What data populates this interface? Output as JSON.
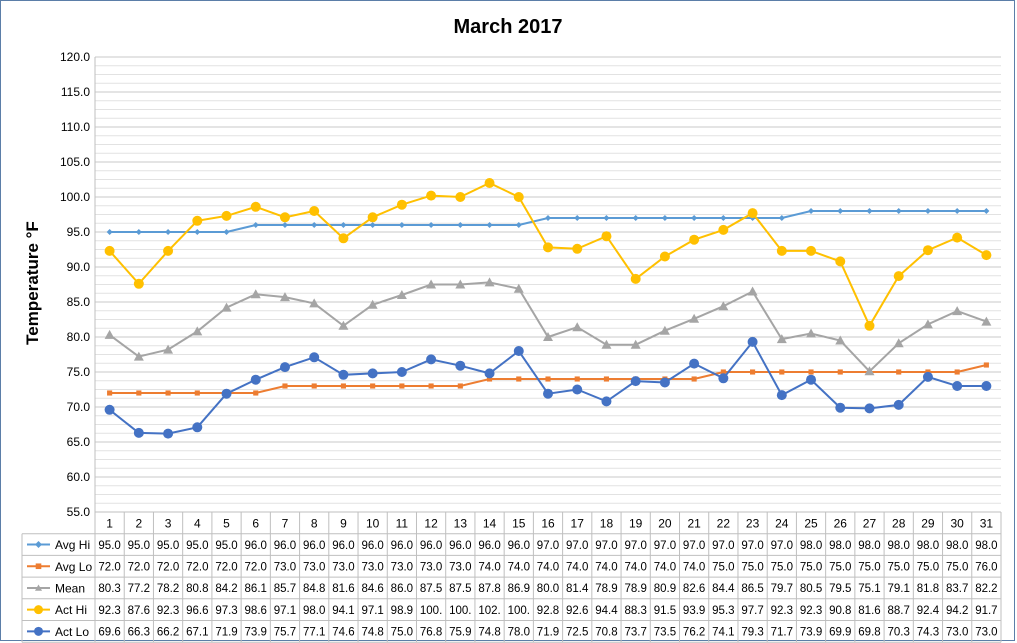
{
  "chart_data": {
    "type": "line",
    "title": "March 2017",
    "ylabel": "Temperature °F",
    "xlabel": "",
    "ylim": [
      55,
      120
    ],
    "y_ticks": [
      "55.0",
      "60.0",
      "65.0",
      "70.0",
      "75.0",
      "80.0",
      "85.0",
      "90.0",
      "95.0",
      "100.0",
      "105.0",
      "110.0",
      "115.0",
      "120.0"
    ],
    "grid": true,
    "legend": "data-table",
    "categories": [
      "1",
      "2",
      "3",
      "4",
      "5",
      "6",
      "7",
      "8",
      "9",
      "10",
      "11",
      "12",
      "13",
      "14",
      "15",
      "16",
      "17",
      "18",
      "19",
      "20",
      "21",
      "22",
      "23",
      "24",
      "25",
      "26",
      "27",
      "28",
      "29",
      "30",
      "31"
    ],
    "series": [
      {
        "name": "Avg Hi",
        "color": "#5b9bd5",
        "marker": "diamond",
        "values": [
          95.0,
          95.0,
          95.0,
          95.0,
          95.0,
          96.0,
          96.0,
          96.0,
          96.0,
          96.0,
          96.0,
          96.0,
          96.0,
          96.0,
          96.0,
          97.0,
          97.0,
          97.0,
          97.0,
          97.0,
          97.0,
          97.0,
          97.0,
          97.0,
          98.0,
          98.0,
          98.0,
          98.0,
          98.0,
          98.0,
          98.0
        ],
        "labels": [
          "95.0",
          "95.0",
          "95.0",
          "95.0",
          "95.0",
          "96.0",
          "96.0",
          "96.0",
          "96.0",
          "96.0",
          "96.0",
          "96.0",
          "96.0",
          "96.0",
          "96.0",
          "97.0",
          "97.0",
          "97.0",
          "97.0",
          "97.0",
          "97.0",
          "97.0",
          "97.0",
          "97.0",
          "98.0",
          "98.0",
          "98.0",
          "98.0",
          "98.0",
          "98.0",
          "98.0"
        ]
      },
      {
        "name": "Avg Lo",
        "color": "#ed7d31",
        "marker": "square",
        "values": [
          72.0,
          72.0,
          72.0,
          72.0,
          72.0,
          72.0,
          73.0,
          73.0,
          73.0,
          73.0,
          73.0,
          73.0,
          73.0,
          74.0,
          74.0,
          74.0,
          74.0,
          74.0,
          74.0,
          74.0,
          74.0,
          75.0,
          75.0,
          75.0,
          75.0,
          75.0,
          75.0,
          75.0,
          75.0,
          75.0,
          76.0
        ],
        "labels": [
          "72.0",
          "72.0",
          "72.0",
          "72.0",
          "72.0",
          "72.0",
          "73.0",
          "73.0",
          "73.0",
          "73.0",
          "73.0",
          "73.0",
          "73.0",
          "74.0",
          "74.0",
          "74.0",
          "74.0",
          "74.0",
          "74.0",
          "74.0",
          "74.0",
          "75.0",
          "75.0",
          "75.0",
          "75.0",
          "75.0",
          "75.0",
          "75.0",
          "75.0",
          "75.0",
          "76.0"
        ]
      },
      {
        "name": "Mean",
        "color": "#a5a5a5",
        "marker": "triangle",
        "values": [
          80.3,
          77.2,
          78.2,
          80.8,
          84.2,
          86.1,
          85.7,
          84.8,
          81.6,
          84.6,
          86.0,
          87.5,
          87.5,
          87.8,
          86.9,
          80.0,
          81.4,
          78.9,
          78.9,
          80.9,
          82.6,
          84.4,
          86.5,
          79.7,
          80.5,
          79.5,
          75.1,
          79.1,
          81.8,
          83.7,
          82.2
        ],
        "labels": [
          "80.3",
          "77.2",
          "78.2",
          "80.8",
          "84.2",
          "86.1",
          "85.7",
          "84.8",
          "81.6",
          "84.6",
          "86.0",
          "87.5",
          "87.5",
          "87.8",
          "86.9",
          "80.0",
          "81.4",
          "78.9",
          "78.9",
          "80.9",
          "82.6",
          "84.4",
          "86.5",
          "79.7",
          "80.5",
          "79.5",
          "75.1",
          "79.1",
          "81.8",
          "83.7",
          "82.2"
        ]
      },
      {
        "name": "Act Hi",
        "color": "#ffc000",
        "marker": "circle",
        "values": [
          92.3,
          87.6,
          92.3,
          96.6,
          97.3,
          98.6,
          97.1,
          98.0,
          94.1,
          97.1,
          98.9,
          100.2,
          100.0,
          102.0,
          100.0,
          92.8,
          92.6,
          94.4,
          88.3,
          91.5,
          93.9,
          95.3,
          97.7,
          92.3,
          92.3,
          90.8,
          81.6,
          88.7,
          92.4,
          94.2,
          91.7
        ],
        "labels": [
          "92.3",
          "87.6",
          "92.3",
          "96.6",
          "97.3",
          "98.6",
          "97.1",
          "98.0",
          "94.1",
          "97.1",
          "98.9",
          "100.",
          "100.",
          "102.",
          "100.",
          "92.8",
          "92.6",
          "94.4",
          "88.3",
          "91.5",
          "93.9",
          "95.3",
          "97.7",
          "92.3",
          "92.3",
          "90.8",
          "81.6",
          "88.7",
          "92.4",
          "94.2",
          "91.7"
        ]
      },
      {
        "name": "Act Lo",
        "color": "#4472c4",
        "marker": "circle",
        "values": [
          69.6,
          66.3,
          66.2,
          67.1,
          71.9,
          73.9,
          75.7,
          77.1,
          74.6,
          74.8,
          75.0,
          76.8,
          75.9,
          74.8,
          78.0,
          71.9,
          72.5,
          70.8,
          73.7,
          73.5,
          76.2,
          74.1,
          79.3,
          71.7,
          73.9,
          69.9,
          69.8,
          70.3,
          74.3,
          73.0,
          73.0
        ],
        "labels": [
          "69.6",
          "66.3",
          "66.2",
          "67.1",
          "71.9",
          "73.9",
          "75.7",
          "77.1",
          "74.6",
          "74.8",
          "75.0",
          "76.8",
          "75.9",
          "74.8",
          "78.0",
          "71.9",
          "72.5",
          "70.8",
          "73.7",
          "73.5",
          "76.2",
          "74.1",
          "79.3",
          "71.7",
          "73.9",
          "69.9",
          "69.8",
          "70.3",
          "74.3",
          "73.0",
          "73.0"
        ]
      }
    ]
  }
}
